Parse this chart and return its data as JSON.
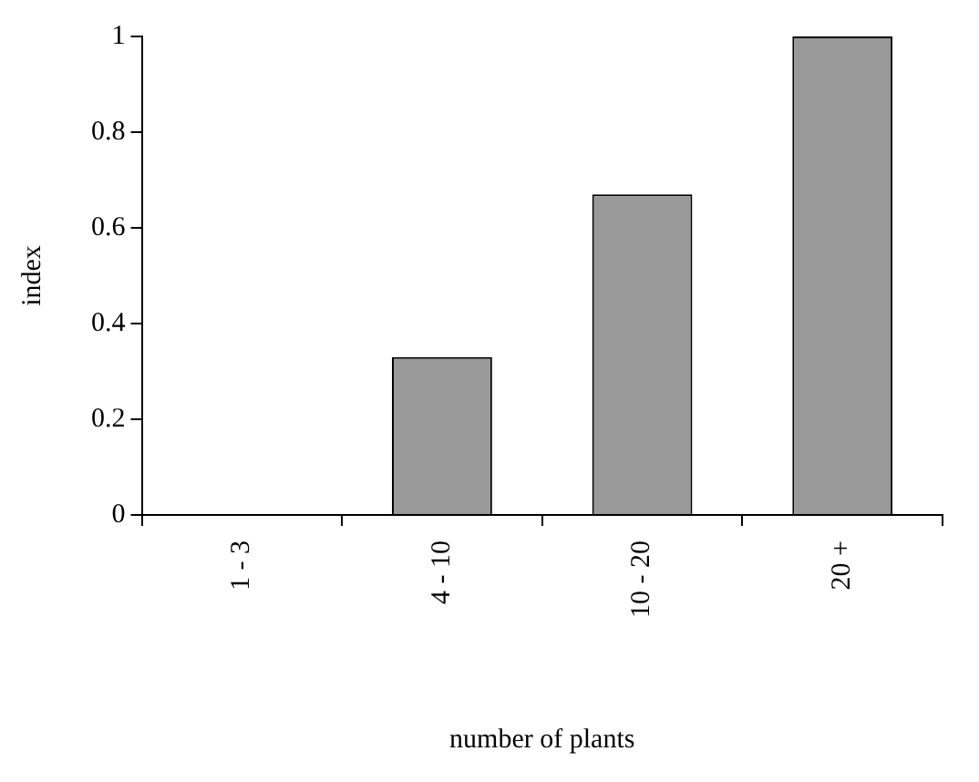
{
  "chart_data": {
    "type": "bar",
    "xlabel": "number of plants",
    "ylabel": "index",
    "categories": [
      "1 - 3",
      "4 - 10",
      "10 - 20",
      "20 +"
    ],
    "values": [
      0,
      0.33,
      0.67,
      1
    ],
    "color": "#999999",
    "ylim": [
      0,
      1
    ],
    "yticks": [
      0,
      0.2,
      0.4,
      0.6,
      0.8,
      1
    ],
    "grid": false,
    "legend": false
  }
}
